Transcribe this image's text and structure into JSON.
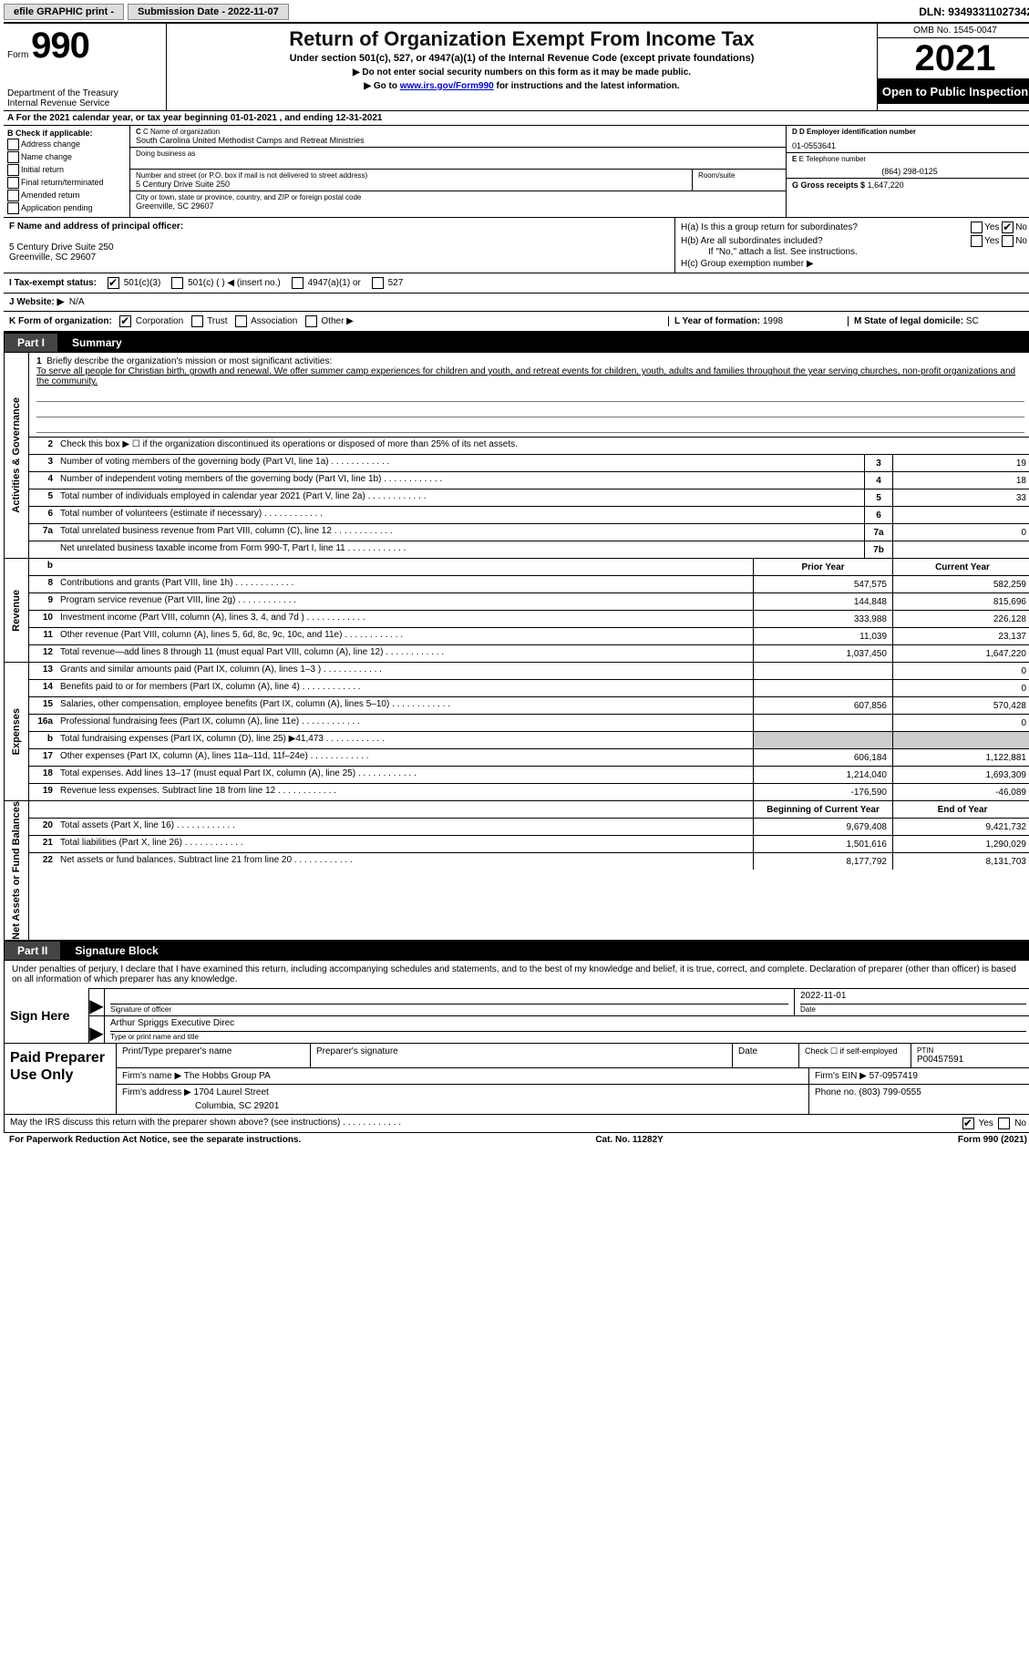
{
  "topbar": {
    "efile": "efile GRAPHIC print -",
    "submission_label": "Submission Date - 2022-11-07",
    "dln": "DLN: 93493311027342"
  },
  "header": {
    "form_word": "Form",
    "form_num": "990",
    "dept": "Department of the Treasury",
    "irs": "Internal Revenue Service",
    "title": "Return of Organization Exempt From Income Tax",
    "subtitle": "Under section 501(c), 527, or 4947(a)(1) of the Internal Revenue Code (except private foundations)",
    "note1": "▶ Do not enter social security numbers on this form as it may be made public.",
    "note2_pre": "▶ Go to ",
    "note2_link": "www.irs.gov/Form990",
    "note2_post": " for instructions and the latest information.",
    "omb": "OMB No. 1545-0047",
    "year": "2021",
    "inspection": "Open to Public Inspection"
  },
  "rowA": "A For the 2021 calendar year, or tax year beginning 01-01-2021    , and ending 12-31-2021",
  "colB": {
    "title": "B Check if applicable:",
    "items": [
      "Address change",
      "Name change",
      "Initial return",
      "Final return/terminated",
      "Amended return",
      "Application pending"
    ]
  },
  "colC": {
    "name_lbl": "C Name of organization",
    "name": "South Carolina United Methodist Camps and Retreat Ministries",
    "dba_lbl": "Doing business as",
    "addr_lbl": "Number and street (or P.O. box if mail is not delivered to street address)",
    "room_lbl": "Room/suite",
    "addr": "5 Century Drive Suite 250",
    "city_lbl": "City or town, state or province, country, and ZIP or foreign postal code",
    "city": "Greenville, SC  29607"
  },
  "colD": {
    "ein_lbl": "D Employer identification number",
    "ein": "01-0553641",
    "tel_lbl": "E Telephone number",
    "tel": "(864) 298-0125",
    "gross_lbl": "G Gross receipts $",
    "gross": "1,647,220"
  },
  "rowF": {
    "lbl": "F  Name and address of principal officer:",
    "addr1": "5 Century Drive Suite 250",
    "addr2": "Greenville, SC  29607"
  },
  "rowH": {
    "ha": "H(a)  Is this a group return for subordinates?",
    "hb": "H(b)  Are all subordinates included?",
    "hb_note": "If \"No,\" attach a list. See instructions.",
    "hc": "H(c)  Group exemption number ▶",
    "yes": "Yes",
    "no": "No"
  },
  "rowI": {
    "lbl": "I  Tax-exempt status:",
    "o1": "501(c)(3)",
    "o2": "501(c) (   ) ◀ (insert no.)",
    "o3": "4947(a)(1) or",
    "o4": "527"
  },
  "rowJ": {
    "lbl": "J  Website: ▶",
    "val": "N/A"
  },
  "rowK": {
    "lbl": "K Form of organization:",
    "o1": "Corporation",
    "o2": "Trust",
    "o3": "Association",
    "o4": "Other ▶",
    "l_lbl": "L Year of formation:",
    "l_val": "1998",
    "m_lbl": "M State of legal domicile:",
    "m_val": "SC"
  },
  "part1": {
    "tab": "Part I",
    "title": "Summary"
  },
  "mission": {
    "lbl": "Briefly describe the organization's mission or most significant activities:",
    "text": "To serve all people for Christian birth, growth and renewal. We offer summer camp experiences for children and youth, and retreat events for children, youth, adults and families throughout the year serving churches, non-profit organizations and the community."
  },
  "line2": "Check this box ▶ ☐  if the organization discontinued its operations or disposed of more than 25% of its net assets.",
  "sections": {
    "gov": "Activities & Governance",
    "rev": "Revenue",
    "exp": "Expenses",
    "net": "Net Assets or Fund Balances"
  },
  "gov_rows": [
    {
      "n": "3",
      "d": "Number of voting members of the governing body (Part VI, line 1a)",
      "box": "3",
      "v": "19"
    },
    {
      "n": "4",
      "d": "Number of independent voting members of the governing body (Part VI, line 1b)",
      "box": "4",
      "v": "18"
    },
    {
      "n": "5",
      "d": "Total number of individuals employed in calendar year 2021 (Part V, line 2a)",
      "box": "5",
      "v": "33"
    },
    {
      "n": "6",
      "d": "Total number of volunteers (estimate if necessary)",
      "box": "6",
      "v": ""
    },
    {
      "n": "7a",
      "d": "Total unrelated business revenue from Part VIII, column (C), line 12",
      "box": "7a",
      "v": "0"
    },
    {
      "n": "",
      "d": "Net unrelated business taxable income from Form 990-T, Part I, line 11",
      "box": "7b",
      "v": ""
    }
  ],
  "hdr_cols": {
    "py": "Prior Year",
    "cy": "Current Year"
  },
  "rev_rows": [
    {
      "n": "8",
      "d": "Contributions and grants (Part VIII, line 1h)",
      "py": "547,575",
      "cy": "582,259"
    },
    {
      "n": "9",
      "d": "Program service revenue (Part VIII, line 2g)",
      "py": "144,848",
      "cy": "815,696"
    },
    {
      "n": "10",
      "d": "Investment income (Part VIII, column (A), lines 3, 4, and 7d )",
      "py": "333,988",
      "cy": "226,128"
    },
    {
      "n": "11",
      "d": "Other revenue (Part VIII, column (A), lines 5, 6d, 8c, 9c, 10c, and 11e)",
      "py": "11,039",
      "cy": "23,137"
    },
    {
      "n": "12",
      "d": "Total revenue—add lines 8 through 11 (must equal Part VIII, column (A), line 12)",
      "py": "1,037,450",
      "cy": "1,647,220"
    }
  ],
  "exp_rows": [
    {
      "n": "13",
      "d": "Grants and similar amounts paid (Part IX, column (A), lines 1–3 )",
      "py": "",
      "cy": "0"
    },
    {
      "n": "14",
      "d": "Benefits paid to or for members (Part IX, column (A), line 4)",
      "py": "",
      "cy": "0"
    },
    {
      "n": "15",
      "d": "Salaries, other compensation, employee benefits (Part IX, column (A), lines 5–10)",
      "py": "607,856",
      "cy": "570,428"
    },
    {
      "n": "16a",
      "d": "Professional fundraising fees (Part IX, column (A), line 11e)",
      "py": "",
      "cy": "0"
    },
    {
      "n": "b",
      "d": "Total fundraising expenses (Part IX, column (D), line 25) ▶41,473",
      "py": "shade",
      "cy": "shade"
    },
    {
      "n": "17",
      "d": "Other expenses (Part IX, column (A), lines 11a–11d, 11f–24e)",
      "py": "606,184",
      "cy": "1,122,881"
    },
    {
      "n": "18",
      "d": "Total expenses. Add lines 13–17 (must equal Part IX, column (A), line 25)",
      "py": "1,214,040",
      "cy": "1,693,309"
    },
    {
      "n": "19",
      "d": "Revenue less expenses. Subtract line 18 from line 12",
      "py": "-176,590",
      "cy": "-46,089"
    }
  ],
  "net_hdr": {
    "py": "Beginning of Current Year",
    "cy": "End of Year"
  },
  "net_rows": [
    {
      "n": "20",
      "d": "Total assets (Part X, line 16)",
      "py": "9,679,408",
      "cy": "9,421,732"
    },
    {
      "n": "21",
      "d": "Total liabilities (Part X, line 26)",
      "py": "1,501,616",
      "cy": "1,290,029"
    },
    {
      "n": "22",
      "d": "Net assets or fund balances. Subtract line 21 from line 20",
      "py": "8,177,792",
      "cy": "8,131,703"
    }
  ],
  "part2": {
    "tab": "Part II",
    "title": "Signature Block"
  },
  "sig": {
    "decl": "Under penalties of perjury, I declare that I have examined this return, including accompanying schedules and statements, and to the best of my knowledge and belief, it is true, correct, and complete. Declaration of preparer (other than officer) is based on all information of which preparer has any knowledge.",
    "sign_here": "Sign Here",
    "date": "2022-11-01",
    "sig_lbl": "Signature of officer",
    "date_lbl": "Date",
    "name": "Arthur Spriggs  Executive Direc",
    "name_lbl": "Type or print name and title"
  },
  "paid": {
    "title": "Paid Preparer Use Only",
    "h1": "Print/Type preparer's name",
    "h2": "Preparer's signature",
    "h3": "Date",
    "h4_pre": "Check ☐ if self-employed",
    "h5": "PTIN",
    "ptin": "P00457591",
    "firm_lbl": "Firm's name   ▶",
    "firm": "The Hobbs Group PA",
    "ein_lbl": "Firm's EIN ▶",
    "ein": "57-0957419",
    "addr_lbl": "Firm's address ▶",
    "addr1": "1704 Laurel Street",
    "addr2": "Columbia, SC  29201",
    "phone_lbl": "Phone no.",
    "phone": "(803) 799-0555"
  },
  "discuss": {
    "q": "May the IRS discuss this return with the preparer shown above? (see instructions)",
    "yes": "Yes",
    "no": "No"
  },
  "bottom": {
    "left": "For Paperwork Reduction Act Notice, see the separate instructions.",
    "mid": "Cat. No. 11282Y",
    "right": "Form 990 (2021)"
  }
}
